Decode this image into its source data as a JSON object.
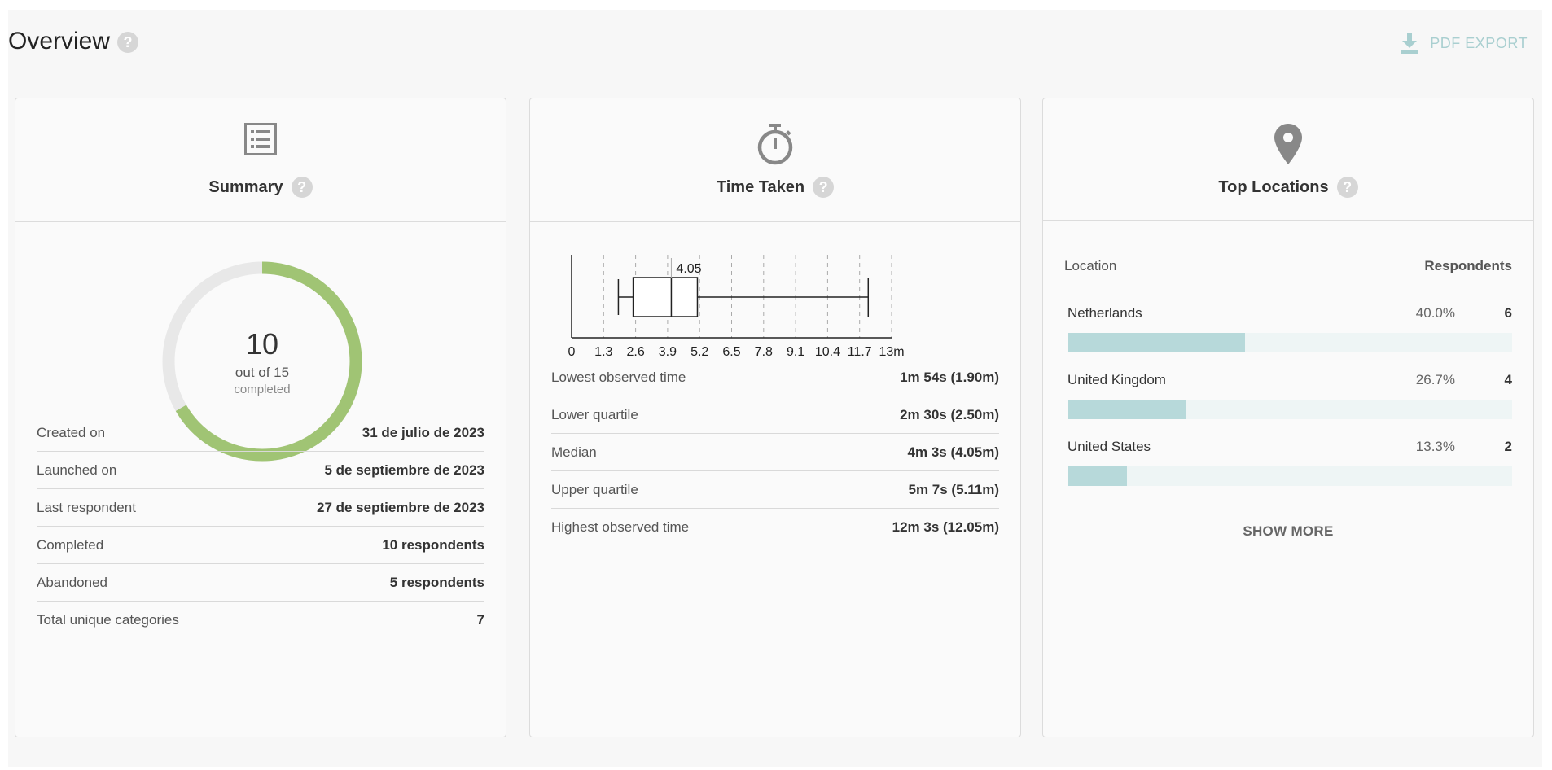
{
  "header": {
    "title": "Overview",
    "help_glyph": "?",
    "export_label": "PDF EXPORT",
    "export_icon": "download-icon"
  },
  "summary": {
    "title": "Summary",
    "icon": "list-icon",
    "help_glyph": "?",
    "completed_count": "10",
    "out_of": "out of 15",
    "status": "completed",
    "progress": 0.6667,
    "colors": {
      "progress": "#a0c474",
      "track": "#e8e8e8"
    },
    "rows": [
      {
        "label": "Created on",
        "value": "31 de julio de 2023"
      },
      {
        "label": "Launched on",
        "value": "5 de septiembre de 2023"
      },
      {
        "label": "Last respondent",
        "value": "27 de septiembre de 2023"
      },
      {
        "label": "Completed",
        "value": "10 respondents"
      },
      {
        "label": "Abandoned",
        "value": "5 respondents"
      },
      {
        "label": "Total unique categories",
        "value": "7"
      }
    ]
  },
  "time_taken": {
    "title": "Time Taken",
    "icon": "stopwatch-icon",
    "help_glyph": "?",
    "rows": [
      {
        "label": "Lowest observed time",
        "value": "1m 54s (1.90m)"
      },
      {
        "label": "Lower quartile",
        "value": "2m 30s (2.50m)"
      },
      {
        "label": "Median",
        "value": "4m 3s (4.05m)"
      },
      {
        "label": "Upper quartile",
        "value": "5m 7s (5.11m)"
      },
      {
        "label": "Highest observed time",
        "value": "12m 3s (12.05m)"
      }
    ]
  },
  "chart_data": {
    "type": "box",
    "min": 1.9,
    "q1": 2.5,
    "median": 4.05,
    "q3": 5.11,
    "max": 12.05,
    "median_label": "4.05",
    "xlim": [
      0,
      13
    ],
    "ticks": [
      0,
      1.3,
      2.6,
      3.9,
      5.2,
      6.5,
      7.8,
      9.1,
      10.4,
      11.7,
      13
    ],
    "tick_labels": [
      "0",
      "1.3",
      "2.6",
      "3.9",
      "5.2",
      "6.5",
      "7.8",
      "9.1",
      "10.4",
      "11.7",
      "13m"
    ],
    "grid": "dashed vertical"
  },
  "top_locations": {
    "title": "Top Locations",
    "icon": "location-pin-icon",
    "help_glyph": "?",
    "col_location": "Location",
    "col_respondents": "Respondents",
    "items": [
      {
        "name": "Netherlands",
        "pct": "40.0%",
        "count": "6",
        "fraction": 0.4
      },
      {
        "name": "United Kingdom",
        "pct": "26.7%",
        "count": "4",
        "fraction": 0.267
      },
      {
        "name": "United States",
        "pct": "13.3%",
        "count": "2",
        "fraction": 0.133
      }
    ],
    "show_more": "SHOW MORE",
    "colors": {
      "bar": "#b7d9da",
      "bar_track": "#eef5f5"
    }
  }
}
